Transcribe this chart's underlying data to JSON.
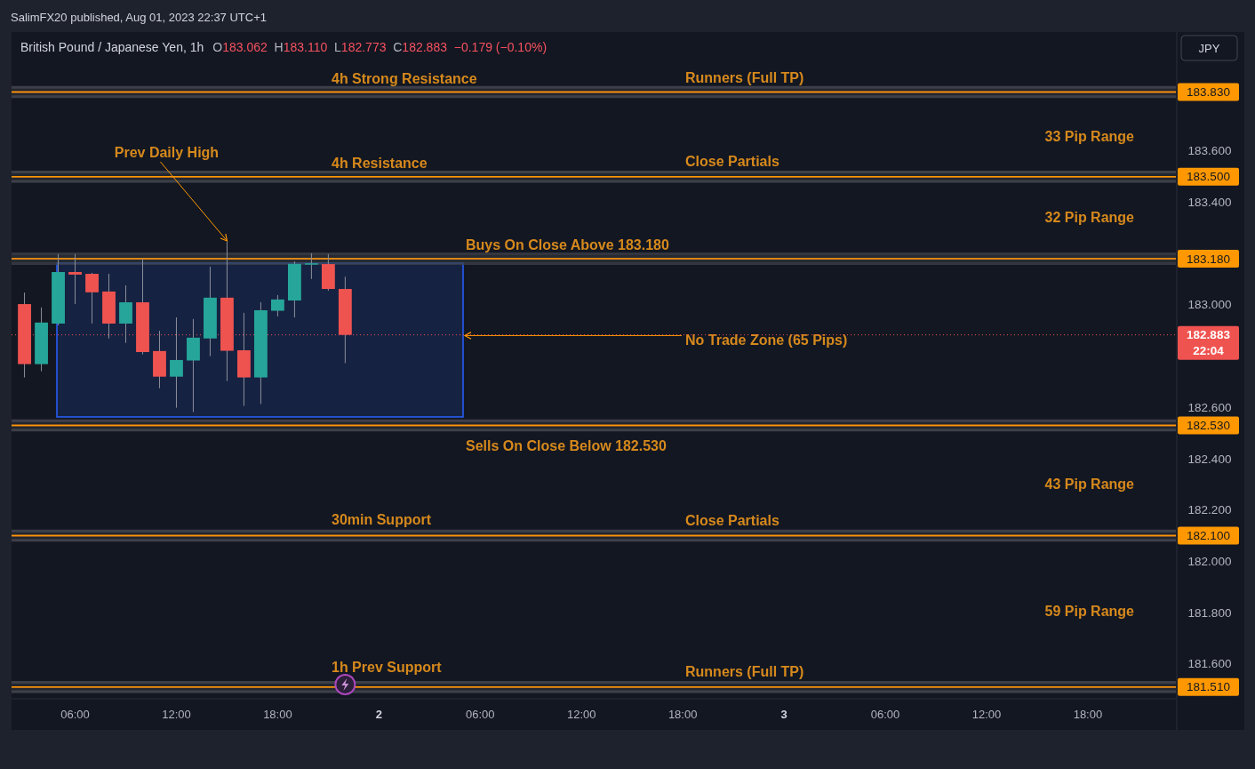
{
  "chart_data": {
    "type": "candlestick",
    "title": "British Pound / Japanese Yen, 1h",
    "subtitle": "O183.062  H183.110  L182.773  C182.883  −0.179 (−0.10%)",
    "x": [
      "2023-08-01T03:00",
      "2023-08-01T04:00",
      "2023-08-01T05:00",
      "2023-08-01T06:00",
      "2023-08-01T07:00",
      "2023-08-01T08:00",
      "2023-08-01T09:00",
      "2023-08-01T10:00",
      "2023-08-01T11:00",
      "2023-08-01T12:00",
      "2023-08-01T13:00",
      "2023-08-01T14:00",
      "2023-08-01T15:00",
      "2023-08-01T16:00",
      "2023-08-01T17:00",
      "2023-08-01T18:00",
      "2023-08-01T19:00",
      "2023-08-01T20:00",
      "2023-08-01T21:00",
      "2023-08-01T22:00"
    ],
    "ohlc": [
      [
        183.003,
        183.048,
        182.717,
        182.769
      ],
      [
        182.769,
        182.99,
        182.741,
        182.931
      ],
      [
        182.927,
        183.198,
        182.92,
        183.128
      ],
      [
        183.128,
        183.198,
        183.003,
        183.118
      ],
      [
        183.121,
        183.125,
        182.927,
        183.049
      ],
      [
        183.052,
        183.121,
        182.869,
        182.927
      ],
      [
        182.927,
        183.076,
        182.852,
        183.01
      ],
      [
        183.01,
        183.18,
        182.807,
        182.816
      ],
      [
        182.82,
        182.899,
        182.675,
        182.72
      ],
      [
        182.72,
        182.951,
        182.599,
        182.785
      ],
      [
        182.783,
        182.945,
        182.582,
        182.872
      ],
      [
        182.869,
        183.149,
        182.8,
        183.028
      ],
      [
        183.028,
        183.246,
        182.703,
        182.821
      ],
      [
        182.823,
        182.969,
        182.606,
        182.717
      ],
      [
        182.717,
        183.01,
        182.613,
        182.979
      ],
      [
        182.977,
        183.038,
        182.955,
        183.021
      ],
      [
        183.017,
        183.17,
        182.951,
        183.16
      ],
      [
        183.158,
        183.201,
        183.101,
        183.162
      ],
      [
        183.159,
        183.198,
        183.055,
        183.062
      ],
      [
        183.062,
        183.11,
        182.773,
        182.883
      ]
    ],
    "colors": [
      "#ef5350",
      "#26a69a",
      "#26a69a",
      "#ef5350",
      "#ef5350",
      "#ef5350",
      "#26a69a",
      "#ef5350",
      "#ef5350",
      "#26a69a",
      "#26a69a",
      "#26a69a",
      "#ef5350",
      "#ef5350",
      "#26a69a",
      "#26a69a",
      "#26a69a",
      "#26a69a",
      "#ef5350",
      "#ef5350"
    ],
    "xlim": [
      "2023-08-01T02:14",
      "2023-08-03T23:13"
    ],
    "ylim": [
      181.464,
      184.064
    ],
    "xticks": [
      {
        "value": "2023-08-01T06:00",
        "label": "06:00"
      },
      {
        "value": "2023-08-01T12:00",
        "label": "12:00"
      },
      {
        "value": "2023-08-01T18:00",
        "label": "18:00"
      },
      {
        "value": "2023-08-02T00:00",
        "label": "2"
      },
      {
        "value": "2023-08-02T06:00",
        "label": "06:00"
      },
      {
        "value": "2023-08-02T12:00",
        "label": "12:00"
      },
      {
        "value": "2023-08-02T18:00",
        "label": "18:00"
      },
      {
        "value": "2023-08-03T00:00",
        "label": "3"
      },
      {
        "value": "2023-08-03T06:00",
        "label": "06:00"
      },
      {
        "value": "2023-08-03T12:00",
        "label": "12:00"
      },
      {
        "value": "2023-08-03T18:00",
        "label": "18:00"
      }
    ],
    "yticks": [
      {
        "value": 181.6,
        "label": "181.600"
      },
      {
        "value": 181.8,
        "label": "181.800"
      },
      {
        "value": 182.0,
        "label": "182.000"
      },
      {
        "value": 182.2,
        "label": "182.200"
      },
      {
        "value": 182.4,
        "label": "182.400"
      },
      {
        "value": 182.6,
        "label": "182.600"
      },
      {
        "value": 183.0,
        "label": "183.000"
      },
      {
        "value": 183.4,
        "label": "183.400"
      },
      {
        "value": 183.6,
        "label": "183.600"
      }
    ],
    "ref_lines": [
      {
        "axis": "y",
        "value": 183.83,
        "label": "183.830",
        "color": "#ff9800"
      },
      {
        "axis": "y",
        "value": 183.5,
        "label": "183.500",
        "color": "#ff9800"
      },
      {
        "axis": "y",
        "value": 183.18,
        "label": "183.180",
        "color": "#ff9800"
      },
      {
        "axis": "y",
        "value": 182.53,
        "label": "182.530",
        "color": "#ff9800"
      },
      {
        "axis": "y",
        "value": 182.1,
        "label": "182.100",
        "color": "#ff9800"
      },
      {
        "axis": "y",
        "value": 181.51,
        "label": "181.510",
        "color": "#ff9800"
      },
      {
        "axis": "y",
        "value": 182.883,
        "label": "182.883\n22:04",
        "color": "#ef5350",
        "line_style": "dotted"
      }
    ],
    "bands": [
      {
        "axis": "y",
        "from": 182.563,
        "to": 183.163,
        "label": "No Trade Zone (65 Pips)",
        "color": "#2962ff"
      }
    ],
    "annotations": [
      "SalimFX20 published, Aug 01, 2023 22:37 UTC+1",
      "JPY",
      "4h Strong Resistance",
      "Runners (Full TP)",
      "33 Pip Range",
      "4h Resistance",
      "Close Partials",
      "32 Pip Range",
      "Buys On Close Above 183.180",
      "Sells On Close Below 182.530",
      "43 Pip Range",
      "30min Support",
      "Close Partials",
      "59 Pip Range",
      "1h Prev Support",
      "Runners (Full TP)",
      {
        "text": "Prev Daily High",
        "x": "2023-08-01T15:00",
        "y": 183.246
      }
    ]
  }
}
